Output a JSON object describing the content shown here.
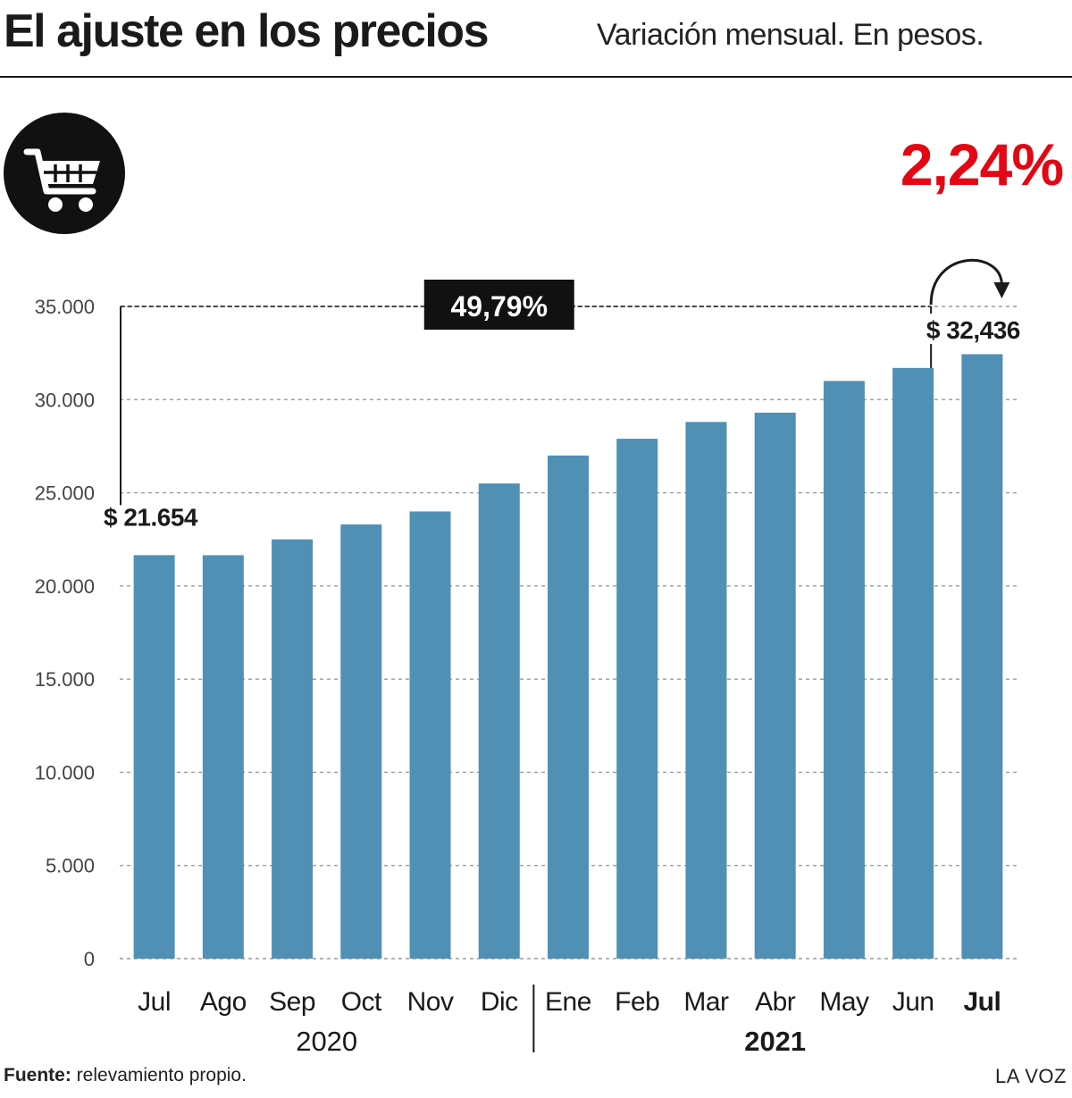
{
  "header": {
    "title": "El ajuste en los precios",
    "subtitle": "Variación mensual. En pesos.",
    "highlight_pct": "2,24%",
    "highlight_color": "#e30613",
    "icon": "shopping-cart-icon"
  },
  "chart_data": {
    "type": "bar",
    "categories": [
      "Jul",
      "Ago",
      "Sep",
      "Oct",
      "Nov",
      "Dic",
      "Ene",
      "Feb",
      "Mar",
      "Abr",
      "May",
      "Jun",
      "Jul"
    ],
    "values": [
      21654,
      21650,
      22500,
      23300,
      24000,
      25500,
      27000,
      27900,
      28800,
      29300,
      31000,
      31700,
      32436
    ],
    "bold_category_index": 12,
    "ylim": [
      0,
      35000
    ],
    "yticks": [
      "0",
      "5.000",
      "10.000",
      "15.000",
      "20.000",
      "25.000",
      "30.000",
      "35.000"
    ],
    "ytick_values": [
      0,
      5000,
      10000,
      15000,
      20000,
      25000,
      30000,
      35000
    ],
    "grid": true,
    "bar_color": "#5190b5",
    "year_groups": [
      {
        "label": "2020",
        "start": 0,
        "end": 5,
        "bold": false
      },
      {
        "label": "2021",
        "start": 6,
        "end": 12,
        "bold": true
      }
    ],
    "annotations": {
      "first_value_label": "$ 21.654",
      "last_value_label": "$ 32,436",
      "total_change": "49,79%"
    }
  },
  "footer": {
    "source_label": "Fuente:",
    "source_text": "relevamiento propio.",
    "brand": "LA VOZ"
  }
}
